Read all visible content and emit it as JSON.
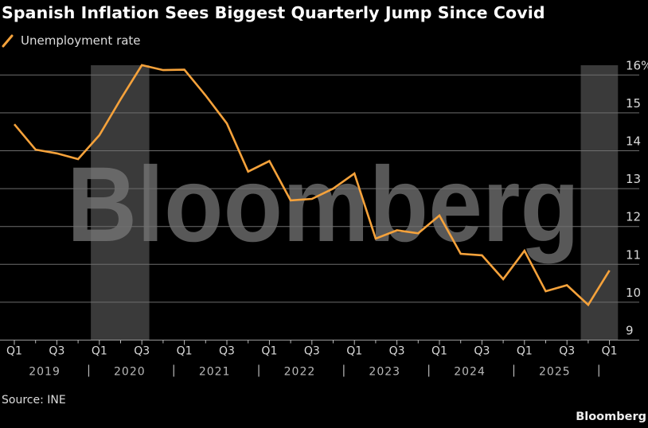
{
  "title": "Spanish Inflation Sees Biggest Quarterly Jump Since Covid",
  "source": "Source: INE",
  "brand": "Bloomberg",
  "colors": {
    "background": "#000000",
    "line": "#f5a23b",
    "shade": "#3a3a3a",
    "grid": "#6e6e6e",
    "watermark": "#7a7a7a",
    "text": "#d9d9d9"
  },
  "chart_data": {
    "type": "line",
    "title": "Spanish Inflation Sees Biggest Quarterly Jump Since Covid",
    "xlabel": "",
    "ylabel": "",
    "watermark": "Bloomberg",
    "legend": [
      "Unemployment rate"
    ],
    "legend_position": "top-left",
    "ylim": [
      9,
      16
    ],
    "yticks": [
      9,
      10,
      11,
      12,
      13,
      14,
      15,
      16
    ],
    "ytick_labels": [
      "9",
      "10",
      "11",
      "12",
      "13",
      "14",
      "15",
      "16%"
    ],
    "y_axis_side": "right",
    "grid": true,
    "x": [
      "Q1 2019",
      "Q2 2019",
      "Q3 2019",
      "Q4 2019",
      "Q1 2020",
      "Q2 2020",
      "Q3 2020",
      "Q4 2020",
      "Q1 2021",
      "Q2 2021",
      "Q3 2021",
      "Q4 2021",
      "Q1 2022",
      "Q2 2022",
      "Q3 2022",
      "Q4 2022",
      "Q1 2023",
      "Q2 2023",
      "Q3 2023",
      "Q4 2023",
      "Q1 2024",
      "Q2 2024",
      "Q3 2024",
      "Q4 2024",
      "Q1 2025",
      "Q2 2025",
      "Q3 2025",
      "Q4 2025",
      "Q1 2026"
    ],
    "quarter_tick_labels": [
      {
        "q": 0,
        "label": "Q1"
      },
      {
        "q": 2,
        "label": "Q3"
      },
      {
        "q": 4,
        "label": "Q1"
      },
      {
        "q": 6,
        "label": "Q3"
      },
      {
        "q": 8,
        "label": "Q1"
      },
      {
        "q": 10,
        "label": "Q3"
      },
      {
        "q": 12,
        "label": "Q1"
      },
      {
        "q": 14,
        "label": "Q3"
      },
      {
        "q": 16,
        "label": "Q1"
      },
      {
        "q": 18,
        "label": "Q3"
      },
      {
        "q": 20,
        "label": "Q1"
      },
      {
        "q": 22,
        "label": "Q3"
      },
      {
        "q": 24,
        "label": "Q1"
      },
      {
        "q": 26,
        "label": "Q3"
      },
      {
        "q": 28,
        "label": "Q1"
      }
    ],
    "year_labels": [
      {
        "q_start": 0,
        "label": "2019"
      },
      {
        "q_start": 4,
        "label": "2020"
      },
      {
        "q_start": 8,
        "label": "2021"
      },
      {
        "q_start": 12,
        "label": "2022"
      },
      {
        "q_start": 16,
        "label": "2023"
      },
      {
        "q_start": 20,
        "label": "2024"
      },
      {
        "q_start": 24,
        "label": "2025"
      }
    ],
    "shaded_periods": [
      {
        "from": "Q1 2020",
        "to": "Q3 2020",
        "q_from": 3.6,
        "q_to": 6.35
      },
      {
        "from": "Q4 2025",
        "to": "Q1 2026",
        "q_from": 26.65,
        "q_to": 28.4
      }
    ],
    "series": [
      {
        "name": "Unemployment rate",
        "values": [
          14.7,
          14.03,
          13.93,
          13.78,
          14.41,
          15.36,
          16.26,
          16.13,
          16.14,
          15.46,
          14.72,
          13.45,
          13.73,
          12.69,
          12.73,
          13.0,
          13.4,
          11.68,
          11.9,
          11.82,
          12.29,
          11.28,
          11.24,
          10.61,
          11.36,
          10.29,
          10.45,
          9.93,
          10.84
        ]
      }
    ]
  }
}
